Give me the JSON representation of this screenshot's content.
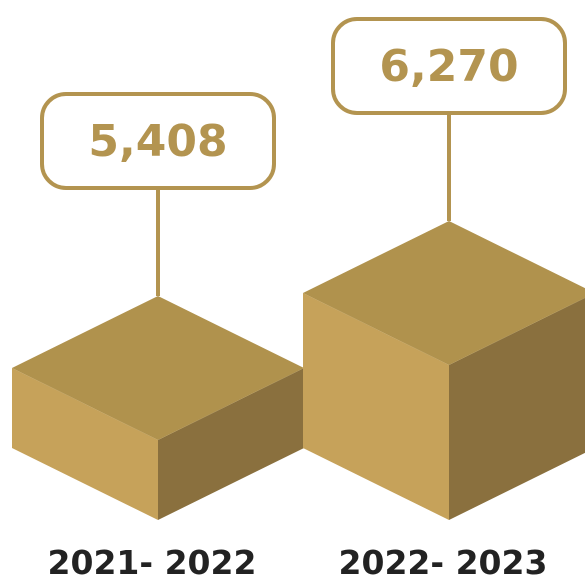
{
  "chart_data": {
    "type": "bar",
    "categories": [
      "2021- 2022",
      "2022- 2023"
    ],
    "values": [
      5408,
      6270
    ],
    "data_labels": [
      "5,408",
      "6,270"
    ],
    "title": "",
    "xlabel": "",
    "ylabel": "",
    "grid": false,
    "legend": "none"
  },
  "colors": {
    "top_face": "#B0924D",
    "left_face": "#C6A25A",
    "right_face": "#8A703E",
    "callout": "#B39450",
    "label_text": "#222222"
  }
}
